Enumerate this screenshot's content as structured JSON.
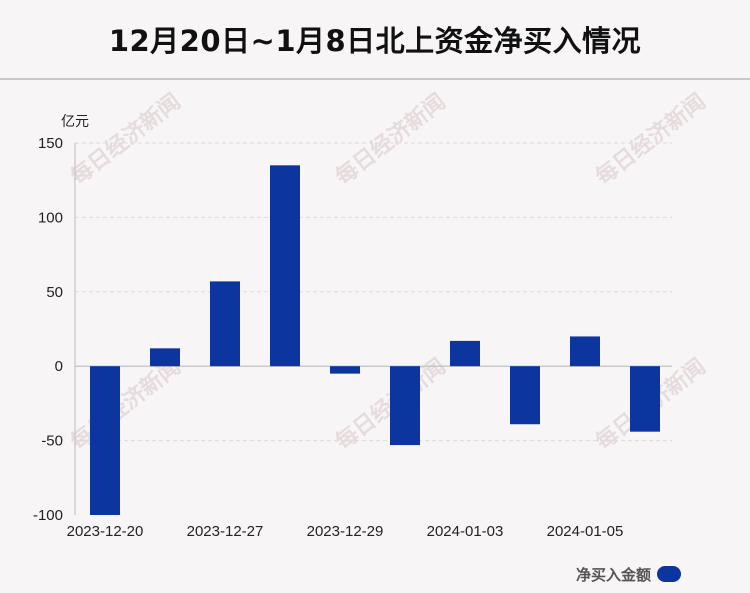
{
  "title": "12月20日~1月8日北上资金净买入情况",
  "colors": {
    "bar": "#0d35a0",
    "grid": "#dddddd",
    "axis": "#bbbbbb",
    "watermark": "#e6dcdd"
  },
  "watermark_text": "每日经济新闻",
  "chart_data": {
    "type": "bar",
    "ylabel": "亿元",
    "ylim": [
      -100,
      150
    ],
    "yticks": [
      150,
      100,
      50,
      0,
      -50,
      -100
    ],
    "grid": true,
    "legend_position": "bottom-right",
    "xtick_labels": [
      "2023-12-20",
      "2023-12-27",
      "2023-12-29",
      "2024-01-03",
      "2024-01-05"
    ],
    "xtick_every": 2,
    "values": [
      -100,
      12,
      57,
      135,
      -5,
      -53,
      17,
      -39,
      20,
      -44
    ],
    "series": [
      {
        "name": "净买入金额"
      }
    ]
  }
}
